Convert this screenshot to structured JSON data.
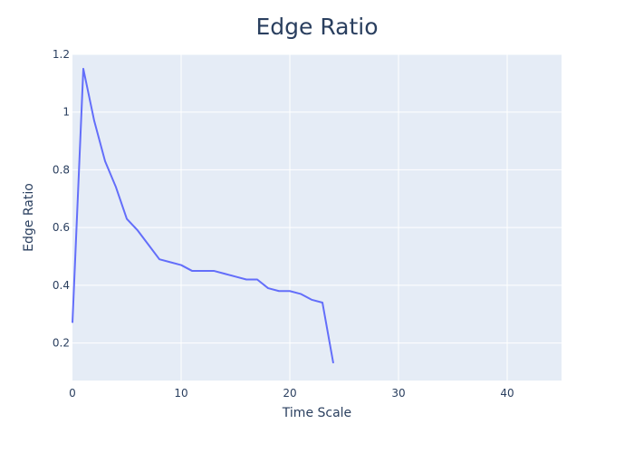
{
  "chart_data": {
    "type": "line",
    "title": "Edge Ratio",
    "xlabel": "Time Scale",
    "ylabel": "Edge Ratio",
    "xlim": [
      0,
      45
    ],
    "ylim": [
      0.07,
      1.2
    ],
    "x_ticks": [
      0,
      10,
      20,
      30,
      40
    ],
    "y_ticks": [
      0.2,
      0.4,
      0.6,
      0.8,
      1,
      1.2
    ],
    "grid": true,
    "plot_background": "#e5ecf6",
    "series": [
      {
        "color": "#636efa",
        "x": [
          0,
          1,
          2,
          3,
          4,
          5,
          6,
          7,
          8,
          9,
          10,
          11,
          12,
          13,
          14,
          15,
          16,
          17,
          18,
          19,
          20,
          21,
          22,
          23,
          24
        ],
        "y": [
          0.27,
          1.15,
          0.97,
          0.83,
          0.74,
          0.63,
          0.59,
          0.54,
          0.49,
          0.48,
          0.47,
          0.45,
          0.45,
          0.45,
          0.44,
          0.43,
          0.42,
          0.42,
          0.39,
          0.38,
          0.38,
          0.37,
          0.35,
          0.34,
          0.13
        ]
      }
    ]
  }
}
